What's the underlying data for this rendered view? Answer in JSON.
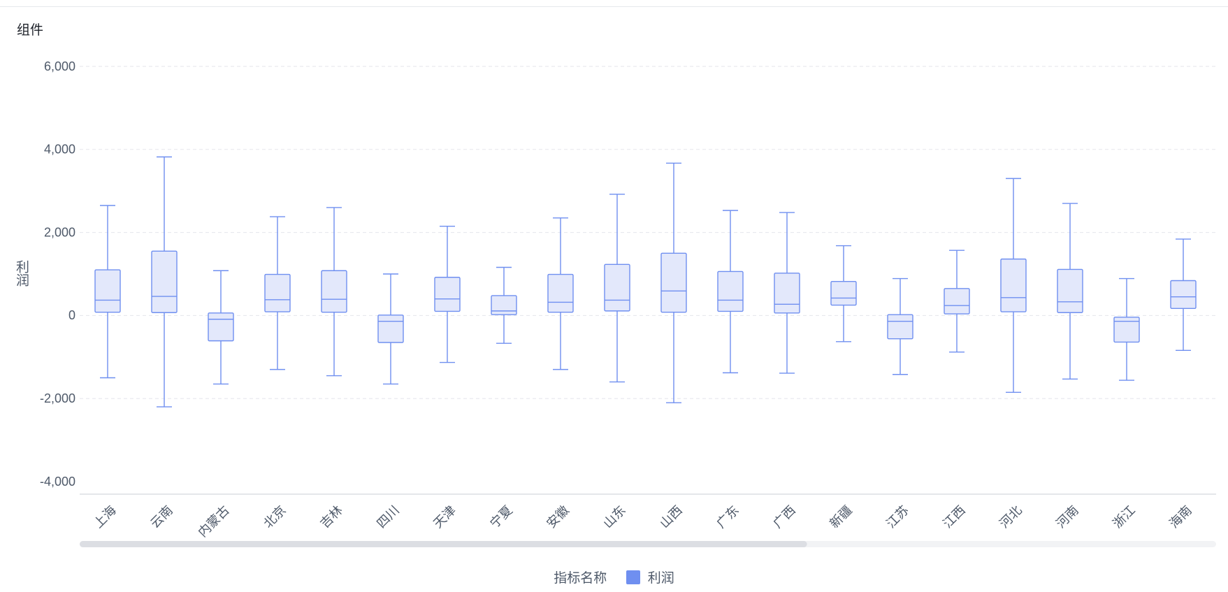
{
  "widget": {
    "title": "组件"
  },
  "chart_data": {
    "type": "boxplot",
    "ylabel": "利润",
    "ylim": [
      -4000,
      6000
    ],
    "yticks": [
      -4000,
      -2000,
      0,
      2000,
      4000,
      6000
    ],
    "ytick_labels": [
      "-4,000",
      "-2,000",
      "0",
      "2,000",
      "4,000",
      "6,000"
    ],
    "grid": true,
    "categories": [
      "上海",
      "云南",
      "内蒙古",
      "北京",
      "吉林",
      "四川",
      "天津",
      "宁夏",
      "安徽",
      "山东",
      "山西",
      "广东",
      "广西",
      "新疆",
      "江苏",
      "江西",
      "河北",
      "河南",
      "浙江",
      "海南"
    ],
    "series": [
      {
        "name": "利润",
        "color": "#6f8ff0",
        "fill": "#e3e8fb",
        "boxes": [
          {
            "min": -1500,
            "q1": 80,
            "median": 370,
            "q3": 1100,
            "max": 2650
          },
          {
            "min": -2200,
            "q1": 70,
            "median": 460,
            "q3": 1550,
            "max": 3820
          },
          {
            "min": -1650,
            "q1": -610,
            "median": -90,
            "q3": 60,
            "max": 1080
          },
          {
            "min": -1300,
            "q1": 90,
            "median": 380,
            "q3": 990,
            "max": 2380
          },
          {
            "min": -1450,
            "q1": 80,
            "median": 390,
            "q3": 1080,
            "max": 2600
          },
          {
            "min": -1650,
            "q1": -650,
            "median": -140,
            "q3": 10,
            "max": 1000
          },
          {
            "min": -1130,
            "q1": 100,
            "median": 400,
            "q3": 920,
            "max": 2150
          },
          {
            "min": -670,
            "q1": 20,
            "median": 110,
            "q3": 480,
            "max": 1160
          },
          {
            "min": -1300,
            "q1": 80,
            "median": 320,
            "q3": 990,
            "max": 2350
          },
          {
            "min": -1600,
            "q1": 110,
            "median": 370,
            "q3": 1230,
            "max": 2920
          },
          {
            "min": -2100,
            "q1": 80,
            "median": 590,
            "q3": 1500,
            "max": 3670
          },
          {
            "min": -1380,
            "q1": 100,
            "median": 370,
            "q3": 1060,
            "max": 2530
          },
          {
            "min": -1390,
            "q1": 60,
            "median": 270,
            "q3": 1020,
            "max": 2480
          },
          {
            "min": -630,
            "q1": 250,
            "median": 420,
            "q3": 820,
            "max": 1680
          },
          {
            "min": -1420,
            "q1": -560,
            "median": -140,
            "q3": 20,
            "max": 890
          },
          {
            "min": -880,
            "q1": 40,
            "median": 240,
            "q3": 650,
            "max": 1570
          },
          {
            "min": -1850,
            "q1": 90,
            "median": 430,
            "q3": 1360,
            "max": 3300
          },
          {
            "min": -1530,
            "q1": 70,
            "median": 330,
            "q3": 1110,
            "max": 2700
          },
          {
            "min": -1560,
            "q1": -640,
            "median": -140,
            "q3": -40,
            "max": 890
          },
          {
            "min": -840,
            "q1": 170,
            "median": 450,
            "q3": 840,
            "max": 1840
          }
        ]
      }
    ],
    "legend": {
      "title": "指标名称",
      "position": "bottom"
    },
    "scrollbar": {
      "visible_fraction": 0.64
    }
  }
}
